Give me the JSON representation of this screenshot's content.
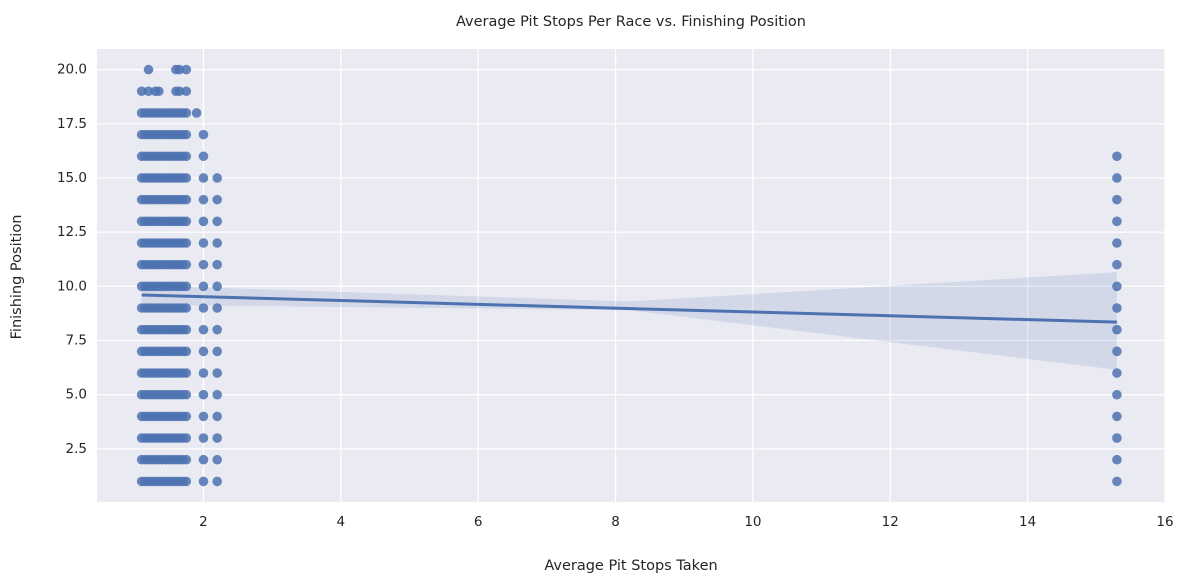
{
  "chart_data": {
    "type": "scatter",
    "title": "Average Pit Stops Per Race vs. Finishing Position",
    "xlabel": "Average Pit Stops Taken",
    "ylabel": "Finishing Position",
    "xlim": [
      0.45,
      16
    ],
    "ylim": [
      0.05,
      20.95
    ],
    "xticks": [
      2,
      4,
      6,
      8,
      10,
      12,
      14,
      16
    ],
    "xtick_labels": [
      "2",
      "4",
      "6",
      "8",
      "10",
      "12",
      "14",
      "16"
    ],
    "yticks": [
      2.5,
      5.0,
      7.5,
      10.0,
      12.5,
      15.0,
      17.5,
      20.0
    ],
    "ytick_labels": [
      "2.5",
      "5.0",
      "7.5",
      "10.0",
      "12.5",
      "15.0",
      "17.5",
      "20.0"
    ],
    "grid": true,
    "legend": false,
    "point_color": "#4c72b0",
    "background_color": "#eaeaf2",
    "point_groups": [
      {
        "x": [
          1.1,
          1.2,
          1.3,
          1.4,
          1.5,
          1.6,
          1.7
        ],
        "y_min": 1,
        "y_max": 18
      },
      {
        "x": [
          1.15,
          1.25,
          1.35,
          1.45,
          1.55,
          1.65,
          1.75
        ],
        "y_min": 1,
        "y_max": 18
      },
      {
        "x": [
          2.0,
          2.2
        ],
        "y_min": 1,
        "y_max": 15
      },
      {
        "x": [
          15.3
        ],
        "y_min": 1,
        "y_max": 16
      }
    ],
    "extra_points": [
      {
        "x": 1.1,
        "y": 19
      },
      {
        "x": 1.2,
        "y": 19
      },
      {
        "x": 1.3,
        "y": 19
      },
      {
        "x": 1.35,
        "y": 19
      },
      {
        "x": 1.6,
        "y": 19
      },
      {
        "x": 1.65,
        "y": 19
      },
      {
        "x": 1.75,
        "y": 19
      },
      {
        "x": 1.9,
        "y": 18
      },
      {
        "x": 2.0,
        "y": 17
      },
      {
        "x": 2.0,
        "y": 16
      },
      {
        "x": 1.2,
        "y": 20
      },
      {
        "x": 1.6,
        "y": 20
      },
      {
        "x": 1.65,
        "y": 20
      },
      {
        "x": 1.75,
        "y": 20
      }
    ],
    "regression": {
      "x_start": 1.1,
      "x_end": 15.3,
      "y_start": 9.6,
      "y_end": 8.35,
      "ci_start": [
        9.15,
        10.05
      ],
      "ci_mid": [
        8.9,
        9.3
      ],
      "ci_end": [
        6.15,
        10.65
      ]
    }
  }
}
